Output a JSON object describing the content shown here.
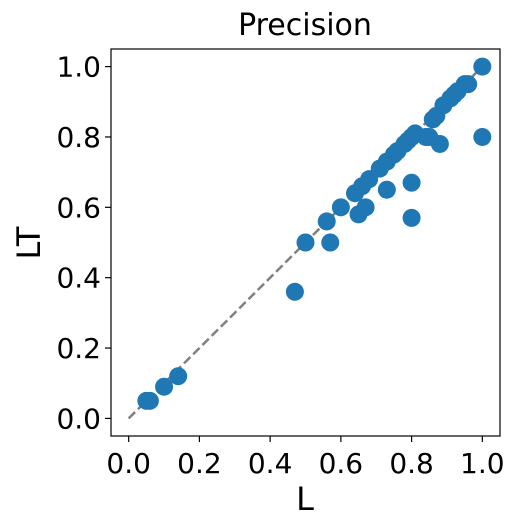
{
  "chart_data": {
    "type": "scatter",
    "title": "Precision",
    "xlabel": "L",
    "ylabel": "LT",
    "xlim": [
      -0.05,
      1.05
    ],
    "ylim": [
      -0.05,
      1.05
    ],
    "xticks": [
      0.0,
      0.2,
      0.4,
      0.6,
      0.8,
      1.0
    ],
    "yticks": [
      0.0,
      0.2,
      0.4,
      0.6,
      0.8,
      1.0
    ],
    "xtick_labels": [
      "0.0",
      "0.2",
      "0.4",
      "0.6",
      "0.8",
      "1.0"
    ],
    "ytick_labels": [
      "0.0",
      "0.2",
      "0.4",
      "0.6",
      "0.8",
      "1.0"
    ],
    "grid": false,
    "legend": "none",
    "reference_line": {
      "style": "dashed",
      "color": "#808080",
      "from": [
        0.0,
        0.0
      ],
      "to": [
        1.0,
        1.0
      ]
    },
    "series": [
      {
        "color": "#1f77b4",
        "points": [
          [
            0.05,
            0.05
          ],
          [
            0.06,
            0.05
          ],
          [
            0.1,
            0.09
          ],
          [
            0.14,
            0.12
          ],
          [
            0.47,
            0.36
          ],
          [
            0.5,
            0.5
          ],
          [
            0.57,
            0.5
          ],
          [
            0.56,
            0.56
          ],
          [
            0.6,
            0.6
          ],
          [
            0.65,
            0.58
          ],
          [
            0.67,
            0.6
          ],
          [
            0.64,
            0.64
          ],
          [
            0.66,
            0.66
          ],
          [
            0.68,
            0.68
          ],
          [
            0.71,
            0.71
          ],
          [
            0.73,
            0.65
          ],
          [
            0.73,
            0.73
          ],
          [
            0.75,
            0.75
          ],
          [
            0.76,
            0.76
          ],
          [
            0.78,
            0.78
          ],
          [
            0.79,
            0.79
          ],
          [
            0.8,
            0.8
          ],
          [
            0.81,
            0.81
          ],
          [
            0.8,
            0.67
          ],
          [
            0.8,
            0.57
          ],
          [
            0.84,
            0.8
          ],
          [
            0.85,
            0.8
          ],
          [
            0.86,
            0.85
          ],
          [
            0.87,
            0.86
          ],
          [
            0.88,
            0.78
          ],
          [
            0.89,
            0.89
          ],
          [
            0.91,
            0.91
          ],
          [
            0.92,
            0.92
          ],
          [
            0.93,
            0.93
          ],
          [
            0.95,
            0.95
          ],
          [
            0.96,
            0.95
          ],
          [
            1.0,
            1.0
          ],
          [
            1.0,
            0.8
          ]
        ]
      }
    ]
  }
}
